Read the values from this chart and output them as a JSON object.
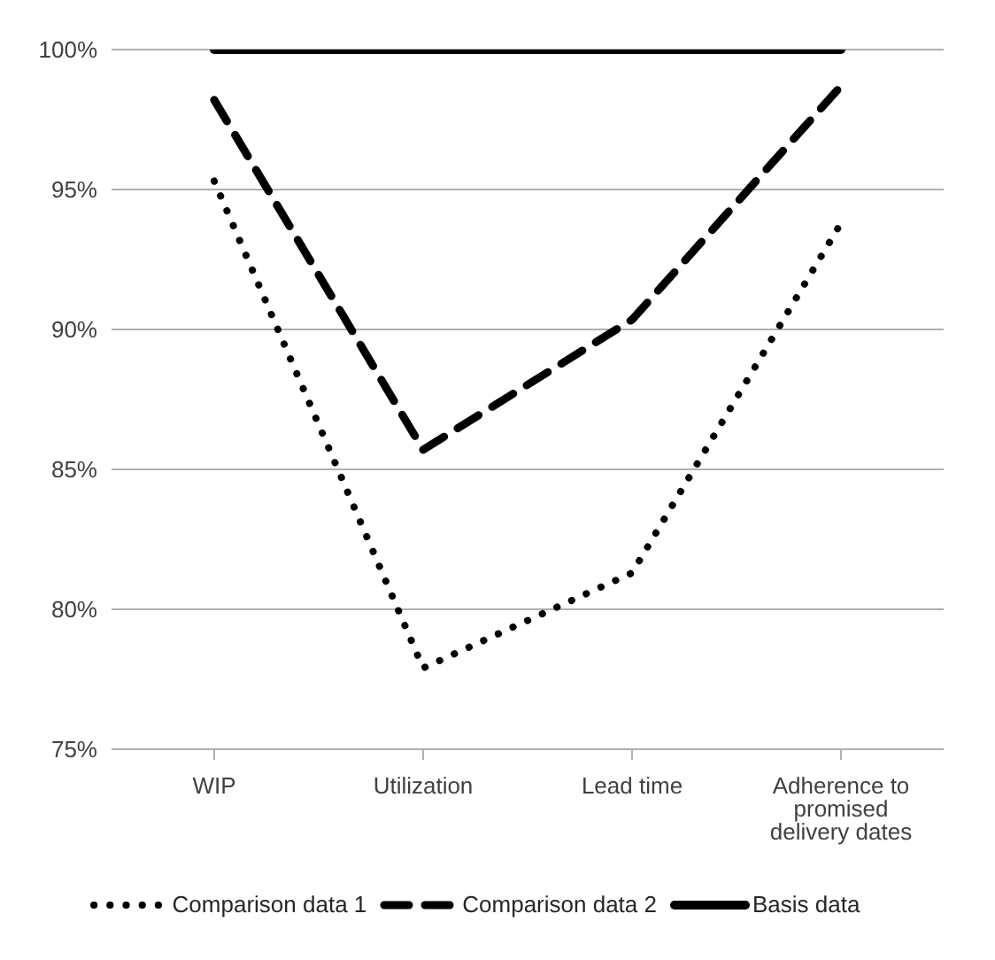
{
  "chart_data": {
    "type": "line",
    "categories": [
      "WIP",
      "Utilization",
      "Lead time",
      "Adherence to promised delivery dates"
    ],
    "series": [
      {
        "name": "Comparison data 1",
        "color": "#000000",
        "line_style": "dotted",
        "values": [
          95.3,
          77.9,
          81.3,
          93.8
        ]
      },
      {
        "name": "Comparison data 2",
        "color": "#000000",
        "line_style": "dashed",
        "values": [
          98.2,
          85.7,
          90.35,
          98.7
        ]
      },
      {
        "name": "Basis data",
        "color": "#000000",
        "line_style": "solid",
        "values": [
          100,
          100,
          100,
          100
        ]
      }
    ],
    "ylim": [
      75,
      100
    ],
    "yticks": [
      {
        "value": 75,
        "label": "75%"
      },
      {
        "value": 80,
        "label": "80%"
      },
      {
        "value": 85,
        "label": "85%"
      },
      {
        "value": 90,
        "label": "90%"
      },
      {
        "value": 95,
        "label": "95%"
      },
      {
        "value": 100,
        "label": "100%"
      }
    ],
    "grid": "y",
    "legend": "bottom",
    "marker": "none"
  }
}
